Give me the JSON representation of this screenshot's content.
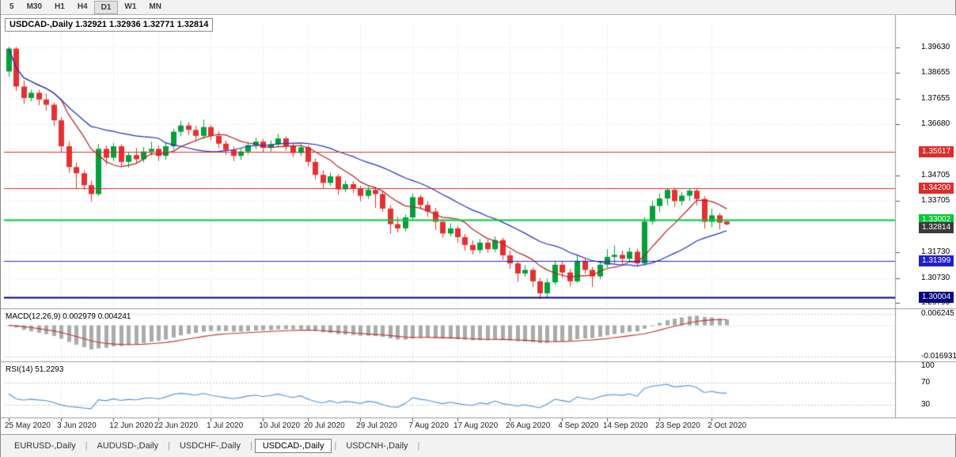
{
  "toolbar": {
    "timeframes": [
      "5",
      "M30",
      "H1",
      "H4",
      "D1",
      "W1",
      "MN"
    ],
    "active": "D1"
  },
  "chart": {
    "symbol_period": "USDCAD-,Daily",
    "ohlc_text": "1.32921 1.32936 1.32771 1.32814",
    "open": "1.32921",
    "high": "1.32936",
    "low": "1.32771",
    "close": "1.32814"
  },
  "price_scale": {
    "ticks": [
      "1.39630",
      "1.38655",
      "1.37655",
      "1.36680",
      "1.34705",
      "1.33705",
      "1.31730",
      "1.30730",
      "1.29795"
    ]
  },
  "levels": [
    {
      "label": "1.35617",
      "value": 1.35617,
      "color": "#e02b2b",
      "line_width": 1,
      "kind": "resistance"
    },
    {
      "label": "1.34200",
      "value": 1.342,
      "color": "#e02b2b",
      "line_width": 1,
      "kind": "resistance"
    },
    {
      "label": "1.33002",
      "value": 1.33002,
      "color": "#00c832",
      "line_width": 2,
      "kind": "pivot"
    },
    {
      "label": "1.32814",
      "value": 1.32814,
      "color": "#3a3a3a",
      "line_width": 0,
      "kind": "current-price"
    },
    {
      "label": "1.31399",
      "value": 1.31399,
      "color": "#2020cc",
      "line_width": 1,
      "kind": "support"
    },
    {
      "label": "1.30004",
      "value": 1.30004,
      "color": "#000080",
      "line_width": 2,
      "kind": "support"
    }
  ],
  "tabs": {
    "separator": "|",
    "items": [
      {
        "label": "EURUSD-,Daily",
        "active": false
      },
      {
        "label": "AUDUSD-,Daily",
        "active": false
      },
      {
        "label": "USDCHF-,Daily",
        "active": false
      },
      {
        "label": "USDCAD-,Daily",
        "active": true
      },
      {
        "label": "USDCNH-,Daily",
        "active": false
      }
    ]
  },
  "colors": {
    "bull": "#00a03a",
    "bear": "#e53030",
    "ma_fast": "#b22222",
    "ma_slow": "#2030c0",
    "macd_hist": "#ababab",
    "macd_signal": "#c03030",
    "rsi_line": "#4c94d6",
    "grid": "#dedede",
    "indicator_grid": "#c4c4c4",
    "separator": "#9a9a9a"
  },
  "chart_data": {
    "type": "candlestick",
    "symbol": "USDCAD-",
    "timeframe": "Daily",
    "y_range": [
      1.2964,
      1.406
    ],
    "x_labels": [
      {
        "i": 0,
        "t": "25 May 2020"
      },
      {
        "i": 7,
        "t": "3 Jun 2020"
      },
      {
        "i": 14,
        "t": "12 Jun 2020"
      },
      {
        "i": 20,
        "t": "22 Jun 2020"
      },
      {
        "i": 27,
        "t": "1 Jul 2020"
      },
      {
        "i": 34,
        "t": "10 Jul 2020"
      },
      {
        "i": 40,
        "t": "20 Jul 2020"
      },
      {
        "i": 47,
        "t": "29 Jul 2020"
      },
      {
        "i": 54,
        "t": "7 Aug 2020"
      },
      {
        "i": 60,
        "t": "17 Aug 2020"
      },
      {
        "i": 67,
        "t": "26 Aug 2020"
      },
      {
        "i": 74,
        "t": "4 Sep 2020"
      },
      {
        "i": 80,
        "t": "14 Sep 2020"
      },
      {
        "i": 87,
        "t": "23 Sep 2020"
      },
      {
        "i": 94,
        "t": "2 Oct 2020"
      }
    ],
    "candles": [
      [
        1.387,
        1.3965,
        1.385,
        1.3958
      ],
      [
        1.3958,
        1.3965,
        1.3795,
        1.3812
      ],
      [
        1.3812,
        1.3835,
        1.3745,
        1.3768
      ],
      [
        1.3768,
        1.38,
        1.3755,
        1.3788
      ],
      [
        1.3788,
        1.38,
        1.374,
        1.3762
      ],
      [
        1.3762,
        1.3785,
        1.372,
        1.3742
      ],
      [
        1.3742,
        1.375,
        1.366,
        1.3682
      ],
      [
        1.3682,
        1.3695,
        1.356,
        1.3582
      ],
      [
        1.3582,
        1.36,
        1.348,
        1.3502
      ],
      [
        1.3502,
        1.352,
        1.342,
        1.3478
      ],
      [
        1.3478,
        1.349,
        1.3415,
        1.3432
      ],
      [
        1.3432,
        1.345,
        1.337,
        1.3398
      ],
      [
        1.3398,
        1.359,
        1.339,
        1.3572
      ],
      [
        1.3572,
        1.3585,
        1.351,
        1.3538
      ],
      [
        1.3538,
        1.3595,
        1.3525,
        1.3582
      ],
      [
        1.3582,
        1.359,
        1.3505,
        1.3522
      ],
      [
        1.3522,
        1.356,
        1.35,
        1.3548
      ],
      [
        1.3548,
        1.3575,
        1.3515,
        1.3532
      ],
      [
        1.3532,
        1.358,
        1.352,
        1.3562
      ],
      [
        1.3562,
        1.36,
        1.3545,
        1.3572
      ],
      [
        1.3572,
        1.3585,
        1.3525,
        1.3545
      ],
      [
        1.3545,
        1.3595,
        1.353,
        1.3582
      ],
      [
        1.3582,
        1.365,
        1.357,
        1.3638
      ],
      [
        1.3638,
        1.368,
        1.362,
        1.3662
      ],
      [
        1.3662,
        1.3675,
        1.3625,
        1.3645
      ],
      [
        1.3645,
        1.366,
        1.36,
        1.3622
      ],
      [
        1.3622,
        1.3685,
        1.361,
        1.3656
      ],
      [
        1.3656,
        1.3665,
        1.3605,
        1.3622
      ],
      [
        1.3622,
        1.364,
        1.3575,
        1.3592
      ],
      [
        1.3592,
        1.3605,
        1.3548,
        1.3568
      ],
      [
        1.3568,
        1.358,
        1.3525,
        1.3545
      ],
      [
        1.3545,
        1.3575,
        1.353,
        1.3562
      ],
      [
        1.3562,
        1.36,
        1.355,
        1.3586
      ],
      [
        1.3586,
        1.3615,
        1.357,
        1.36
      ],
      [
        1.36,
        1.361,
        1.356,
        1.3576
      ],
      [
        1.3576,
        1.3605,
        1.3562,
        1.359
      ],
      [
        1.359,
        1.363,
        1.3578,
        1.3612
      ],
      [
        1.3612,
        1.362,
        1.3565,
        1.3582
      ],
      [
        1.3582,
        1.3595,
        1.354,
        1.3556
      ],
      [
        1.3556,
        1.359,
        1.3545,
        1.3578
      ],
      [
        1.3578,
        1.3585,
        1.3505,
        1.3522
      ],
      [
        1.3522,
        1.3535,
        1.3455,
        1.3472
      ],
      [
        1.3472,
        1.349,
        1.342,
        1.3441
      ],
      [
        1.3441,
        1.348,
        1.343,
        1.3466
      ],
      [
        1.3466,
        1.3475,
        1.3395,
        1.3416
      ],
      [
        1.3416,
        1.345,
        1.3405,
        1.3436
      ],
      [
        1.3436,
        1.3448,
        1.3402,
        1.3419
      ],
      [
        1.3419,
        1.343,
        1.337,
        1.3391
      ],
      [
        1.3391,
        1.3428,
        1.338,
        1.3414
      ],
      [
        1.3414,
        1.3425,
        1.3345,
        1.3398
      ],
      [
        1.3398,
        1.341,
        1.333,
        1.3342
      ],
      [
        1.3342,
        1.3355,
        1.3245,
        1.3282
      ],
      [
        1.3282,
        1.331,
        1.325,
        1.3266
      ],
      [
        1.3266,
        1.332,
        1.3255,
        1.3308
      ],
      [
        1.3308,
        1.34,
        1.33,
        1.3386
      ],
      [
        1.3386,
        1.3395,
        1.334,
        1.3356
      ],
      [
        1.3356,
        1.337,
        1.331,
        1.3331
      ],
      [
        1.3331,
        1.3345,
        1.326,
        1.3291
      ],
      [
        1.3291,
        1.33,
        1.323,
        1.3246
      ],
      [
        1.3246,
        1.3285,
        1.3235,
        1.3266
      ],
      [
        1.3266,
        1.3275,
        1.321,
        1.3232
      ],
      [
        1.3232,
        1.3245,
        1.318,
        1.3202
      ],
      [
        1.3202,
        1.322,
        1.3165,
        1.3182
      ],
      [
        1.3182,
        1.3225,
        1.317,
        1.3211
      ],
      [
        1.3211,
        1.3222,
        1.3172,
        1.3186
      ],
      [
        1.3186,
        1.3235,
        1.3175,
        1.3221
      ],
      [
        1.3221,
        1.323,
        1.3145,
        1.3162
      ],
      [
        1.3162,
        1.318,
        1.311,
        1.3131
      ],
      [
        1.3131,
        1.314,
        1.306,
        1.3092
      ],
      [
        1.3092,
        1.3125,
        1.308,
        1.3106
      ],
      [
        1.3106,
        1.3115,
        1.304,
        1.3062
      ],
      [
        1.3062,
        1.3075,
        1.2994,
        1.3016
      ],
      [
        1.3016,
        1.3072,
        1.3,
        1.3058
      ],
      [
        1.3058,
        1.314,
        1.3048,
        1.3126
      ],
      [
        1.3126,
        1.3138,
        1.3075,
        1.3096
      ],
      [
        1.3096,
        1.311,
        1.3042,
        1.3062
      ],
      [
        1.3062,
        1.3162,
        1.3055,
        1.3141
      ],
      [
        1.3141,
        1.3152,
        1.309,
        1.3106
      ],
      [
        1.3106,
        1.3118,
        1.304,
        1.3081
      ],
      [
        1.3081,
        1.314,
        1.307,
        1.3126
      ],
      [
        1.3126,
        1.3186,
        1.3115,
        1.3156
      ],
      [
        1.3156,
        1.32,
        1.313,
        1.3164
      ],
      [
        1.3164,
        1.318,
        1.3122,
        1.3149
      ],
      [
        1.3149,
        1.3192,
        1.3138,
        1.3176
      ],
      [
        1.3176,
        1.3188,
        1.3118,
        1.3131
      ],
      [
        1.3131,
        1.331,
        1.3122,
        1.3292
      ],
      [
        1.3292,
        1.3372,
        1.328,
        1.3352
      ],
      [
        1.3352,
        1.34,
        1.333,
        1.3381
      ],
      [
        1.3381,
        1.342,
        1.3355,
        1.3414
      ],
      [
        1.3414,
        1.3419,
        1.3348,
        1.3371
      ],
      [
        1.3371,
        1.3405,
        1.3355,
        1.3392
      ],
      [
        1.3392,
        1.342,
        1.3372,
        1.3411
      ],
      [
        1.3411,
        1.3418,
        1.3355,
        1.3379
      ],
      [
        1.3379,
        1.339,
        1.3265,
        1.3291
      ],
      [
        1.3291,
        1.3341,
        1.327,
        1.3316
      ],
      [
        1.3316,
        1.3325,
        1.3262,
        1.3288
      ],
      [
        1.32921,
        1.32936,
        1.32771,
        1.32814
      ]
    ],
    "overlays": [
      {
        "name": "ma-fast",
        "type": "sma",
        "period": 8,
        "color": "#b22222"
      },
      {
        "name": "ma-slow",
        "type": "sma",
        "period": 21,
        "color": "#2030c0"
      }
    ],
    "indicators": [
      {
        "name": "MACD",
        "label": "MACD(12,26,9) 0.002979 0.004241",
        "params": [
          12,
          26,
          9
        ],
        "values": [
          0.002979,
          0.004241
        ],
        "scale_labels": [
          "0.006245",
          "-0.016931"
        ],
        "scale_values": [
          0.006245,
          -0.016931
        ]
      },
      {
        "name": "RSI",
        "label": "RSI(14) 51.2293",
        "params": [
          14
        ],
        "value": 51.2293,
        "scale_labels": [
          "100",
          "70",
          "30"
        ],
        "levels": [
          70,
          30
        ]
      }
    ]
  }
}
